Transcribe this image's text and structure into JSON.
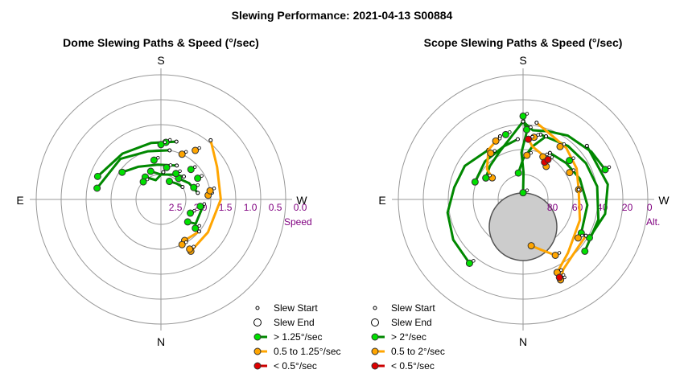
{
  "title": "Slewing Performance: 2021-04-13 S00884",
  "colors": {
    "fast": "#00e000",
    "fast_line": "#008800",
    "medium": "#ffa500",
    "medium_line": "#ffa500",
    "slow": "#e00000",
    "slow_line": "#cc0000",
    "grid": "#999999",
    "scale_text": "#800080",
    "moon": "#cccccc"
  },
  "chart_data": [
    {
      "type": "polar-path",
      "title": "Dome Slewing Paths & Speed (°/sec)",
      "directions": {
        "top": "S",
        "left": "E",
        "right": "W",
        "bottom": "N"
      },
      "radial_ticks": [
        "2.5",
        "2.0",
        "1.5",
        "1.0",
        "0.5",
        "0.0"
      ],
      "radial_axis_label": "Speed",
      "legend": [
        "Slew Start",
        "Slew End",
        "> 1.25°/sec",
        "0.5 to 1.25°/sec",
        "< 0.5°/sec"
      ],
      "paths": [
        {
          "speed": "medium",
          "pts": [
            [
              -40,
              -1.2
            ],
            [
              -60,
              -1.45
            ],
            [
              -90,
              -1.55
            ],
            [
              -125,
              -1.6
            ],
            [
              -150,
              -1.55
            ]
          ]
        },
        {
          "speed": "fast",
          "pts": [
            [
              -15,
              -1.55
            ],
            [
              10,
              -1.6
            ],
            [
              40,
              -1.55
            ],
            [
              70,
              -1.4
            ]
          ]
        },
        {
          "speed": "fast",
          "pts": [
            [
              -10,
              -1.75
            ],
            [
              15,
              -1.75
            ],
            [
              45,
              -1.6
            ],
            [
              80,
              -1.45
            ]
          ]
        },
        {
          "speed": "fast",
          "pts": [
            [
              -25,
              -2.0
            ],
            [
              5,
              -2.05
            ],
            [
              35,
              -1.95
            ],
            [
              55,
              -1.8
            ]
          ]
        },
        {
          "speed": "fast",
          "pts": [
            [
              -45,
              -2.1
            ],
            [
              -25,
              -2.2
            ],
            [
              0,
              -2.25
            ],
            [
              20,
              -2.15
            ]
          ]
        },
        {
          "speed": "fast",
          "pts": [
            [
              -60,
              -2.25
            ],
            [
              -45,
              -2.3
            ],
            [
              -25,
              -2.35
            ]
          ]
        },
        {
          "speed": "fast",
          "pts": [
            [
              -80,
              -2.0
            ],
            [
              -60,
              -2.1
            ],
            [
              -40,
              -2.2
            ]
          ]
        },
        {
          "speed": "fast",
          "pts": [
            [
              -100,
              -1.9
            ],
            [
              -125,
              -1.9
            ],
            [
              -130,
              -2.05
            ]
          ]
        },
        {
          "speed": "fast",
          "pts": [
            [
              -5,
              -2.2
            ],
            [
              15,
              -2.35
            ],
            [
              35,
              -2.2
            ]
          ]
        },
        {
          "speed": "medium",
          "pts": [
            [
              -130,
              -1.75
            ],
            [
              -150,
              -1.8
            ]
          ]
        }
      ],
      "points": [
        {
          "speed": "medium",
          "pt": [
            -85,
            -1.8
          ]
        },
        {
          "speed": "medium",
          "pt": [
            -80,
            -1.75
          ]
        },
        {
          "speed": "medium",
          "pt": [
            -25,
            -1.75
          ]
        },
        {
          "speed": "medium",
          "pt": [
            -35,
            -1.55
          ]
        },
        {
          "speed": "medium",
          "pt": [
            -155,
            -1.75
          ]
        },
        {
          "speed": "medium",
          "pt": [
            -150,
            -1.6
          ]
        },
        {
          "speed": "fast",
          "pt": [
            -5,
            -1.6
          ]
        },
        {
          "speed": "fast",
          "pt": [
            -45,
            -1.9
          ]
        },
        {
          "speed": "fast",
          "pt": [
            -60,
            -1.9
          ]
        },
        {
          "speed": "fast",
          "pt": [
            -100,
            -1.95
          ]
        },
        {
          "speed": "fast",
          "pt": [
            -130,
            -1.85
          ]
        },
        {
          "speed": "fast",
          "pt": [
            -115,
            -2.1
          ]
        },
        {
          "speed": "fast",
          "pt": [
            -30,
            -2.15
          ]
        },
        {
          "speed": "fast",
          "pt": [
            10,
            -1.95
          ]
        },
        {
          "speed": "fast",
          "pt": [
            45,
            -2.25
          ]
        },
        {
          "speed": "fast",
          "pt": [
            -10,
            -2.1
          ]
        },
        {
          "speed": "fast",
          "pt": [
            -70,
            -2.05
          ]
        },
        {
          "speed": "fast",
          "pt": [
            0,
            -1.65
          ]
        }
      ]
    },
    {
      "type": "polar-path",
      "title": "Scope Slewing Paths & Speed (°/sec)",
      "directions": {
        "top": "S",
        "left": "E",
        "right": "W",
        "bottom": "N"
      },
      "radial_ticks": [
        "80",
        "60",
        "40",
        "20",
        "0"
      ],
      "radial_axis_label": "Alt.",
      "legend": [
        "Slew Start",
        "Slew End",
        "> 2°/sec",
        "0.5 to 2°/sec",
        "< 0.5°/sec"
      ],
      "moon": {
        "az": 0,
        "alt": 62,
        "radius_deg": 11
      },
      "paths": [
        {
          "speed": "fast",
          "pts": [
            [
              0,
              32
            ],
            [
              -8,
              38
            ],
            [
              -20,
              36
            ],
            [
              -35,
              32
            ],
            [
              -55,
              28
            ],
            [
              -70,
              25
            ]
          ]
        },
        {
          "speed": "fast",
          "pts": [
            [
              0,
              28
            ],
            [
              -3,
              40
            ],
            [
              2,
              55
            ],
            [
              -1,
              70
            ],
            [
              0,
              85
            ]
          ]
        },
        {
          "speed": "fast",
          "pts": [
            [
              0,
              32
            ],
            [
              10,
              42
            ],
            [
              25,
              50
            ],
            [
              45,
              55
            ],
            [
              60,
              58
            ]
          ]
        },
        {
          "speed": "fast",
          "pts": [
            [
              -15,
              40
            ],
            [
              -40,
              38
            ],
            [
              -60,
              36
            ],
            [
              -80,
              34
            ],
            [
              -105,
              32
            ],
            [
              -130,
              30
            ]
          ]
        },
        {
          "speed": "fast",
          "pts": [
            [
              35,
              45
            ],
            [
              60,
              40
            ],
            [
              80,
              38
            ],
            [
              100,
              33
            ],
            [
              120,
              30
            ],
            [
              140,
              28
            ]
          ]
        },
        {
          "speed": "fast",
          "pts": [
            [
              -30,
              50
            ],
            [
              -50,
              48
            ],
            [
              -70,
              45
            ],
            [
              -95,
              42
            ],
            [
              -120,
              40
            ]
          ]
        },
        {
          "speed": "fast",
          "pts": [
            [
              -50,
              28
            ],
            [
              -80,
              26
            ],
            [
              -100,
              28
            ],
            [
              -120,
              33
            ]
          ]
        },
        {
          "speed": "fast",
          "pts": [
            [
              5,
              45
            ],
            [
              20,
              48
            ],
            [
              45,
              50
            ],
            [
              70,
              52
            ]
          ]
        },
        {
          "speed": "fast",
          "pts": [
            [
              -20,
              40
            ],
            [
              -10,
              50
            ],
            [
              0,
              60
            ],
            [
              10,
              70
            ]
          ]
        },
        {
          "speed": "medium",
          "pts": [
            [
              -10,
              32
            ],
            [
              -25,
              38
            ],
            [
              -40,
              40
            ],
            [
              -60,
              44
            ],
            [
              -80,
              48
            ]
          ]
        },
        {
          "speed": "medium",
          "pts": [
            [
              -80,
              48
            ],
            [
              -110,
              45
            ],
            [
              -140,
              38
            ],
            [
              -155,
              30
            ]
          ]
        },
        {
          "speed": "medium",
          "pts": [
            [
              -120,
              36
            ],
            [
              -140,
              34
            ],
            [
              -150,
              30
            ],
            [
              -155,
              24
            ]
          ]
        },
        {
          "speed": "medium",
          "pts": [
            [
              20,
              40
            ],
            [
              35,
              45
            ],
            [
              50,
              55
            ],
            [
              55,
              62
            ]
          ]
        },
        {
          "speed": "medium",
          "pts": [
            [
              -5,
              45
            ],
            [
              -10,
              50
            ],
            [
              -25,
              54
            ],
            [
              -35,
              60
            ]
          ]
        },
        {
          "speed": "medium",
          "pts": [
            [
              -150,
              42
            ],
            [
              -160,
              50
            ],
            [
              -170,
              55
            ]
          ]
        }
      ],
      "points": [
        {
          "speed": "fast",
          "pt": [
            0,
            28
          ]
        },
        {
          "speed": "fast",
          "pt": [
            -70,
            25
          ]
        },
        {
          "speed": "fast",
          "pt": [
            140,
            28
          ]
        },
        {
          "speed": "fast",
          "pt": [
            60,
            58
          ]
        },
        {
          "speed": "fast",
          "pt": [
            0,
            85
          ]
        },
        {
          "speed": "fast",
          "pt": [
            -3,
            38
          ]
        },
        {
          "speed": "fast",
          "pt": [
            15,
            40
          ]
        },
        {
          "speed": "fast",
          "pt": [
            -50,
            45
          ]
        },
        {
          "speed": "medium",
          "pt": [
            -155,
            24
          ]
        },
        {
          "speed": "medium",
          "pt": [
            -155,
            30
          ]
        },
        {
          "speed": "medium",
          "pt": [
            -10,
            43
          ]
        },
        {
          "speed": "medium",
          "pt": [
            -25,
            55
          ]
        },
        {
          "speed": "medium",
          "pt": [
            -125,
            40
          ]
        },
        {
          "speed": "medium",
          "pt": [
            25,
            42
          ]
        },
        {
          "speed": "medium",
          "pt": [
            35,
            48
          ]
        },
        {
          "speed": "medium",
          "pt": [
            -5,
            57
          ]
        },
        {
          "speed": "medium",
          "pt": [
            -150,
            42
          ]
        },
        {
          "speed": "medium",
          "pt": [
            -35,
            42
          ]
        },
        {
          "speed": "medium",
          "pt": [
            -60,
            50
          ]
        },
        {
          "speed": "slow",
          "pt": [
            -30,
            58
          ]
        },
        {
          "speed": "slow",
          "pt": [
            -32,
            55
          ]
        },
        {
          "speed": "slow",
          "pt": [
            -155,
            26
          ]
        },
        {
          "speed": "slow",
          "pt": [
            -5,
            45
          ]
        }
      ]
    }
  ]
}
